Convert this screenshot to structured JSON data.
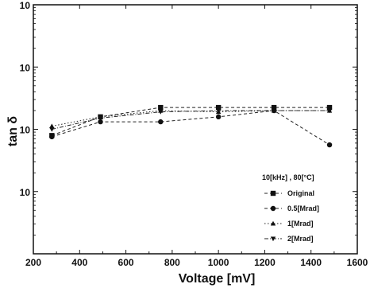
{
  "chart_data": {
    "type": "line",
    "xlabel": "Voltage  [mV]",
    "ylabel": "tan δ",
    "xlim": [
      200,
      1600
    ],
    "xticks": [
      200,
      400,
      600,
      800,
      1000,
      1200,
      1400,
      1600
    ],
    "xtick_labels": [
      "200",
      "400",
      "600",
      "800",
      "1000",
      "1200",
      "1400",
      "1600"
    ],
    "yscale": "log",
    "ylim_decades": [
      0,
      4
    ],
    "ytick_labels": [
      "10",
      "10",
      "10",
      "10"
    ],
    "grid": false,
    "legend_position": "bottom-right",
    "legend_title": "10[kHz] ,  80[°C]",
    "x": [
      280,
      490,
      750,
      1000,
      1240,
      1480
    ],
    "series": [
      {
        "name": "Original",
        "marker": "square",
        "line": "dash",
        "values": [
          1.9,
          2.2,
          2.35,
          2.35,
          2.35,
          2.35
        ]
      },
      {
        "name": "0.5[Mrad]",
        "marker": "circle",
        "line": "dash",
        "values": [
          1.88,
          2.12,
          2.12,
          2.2,
          2.3,
          1.75
        ]
      },
      {
        "name": "1[Mrad]",
        "marker": "triangle-up",
        "line": "dot",
        "values": [
          2.05,
          2.2,
          2.3,
          2.28,
          2.3,
          2.3
        ]
      },
      {
        "name": "2[Mrad]",
        "marker": "triangle-down",
        "line": "dash-dot",
        "values": [
          2.0,
          2.18,
          2.28,
          2.3,
          2.3,
          2.3
        ]
      }
    ]
  }
}
